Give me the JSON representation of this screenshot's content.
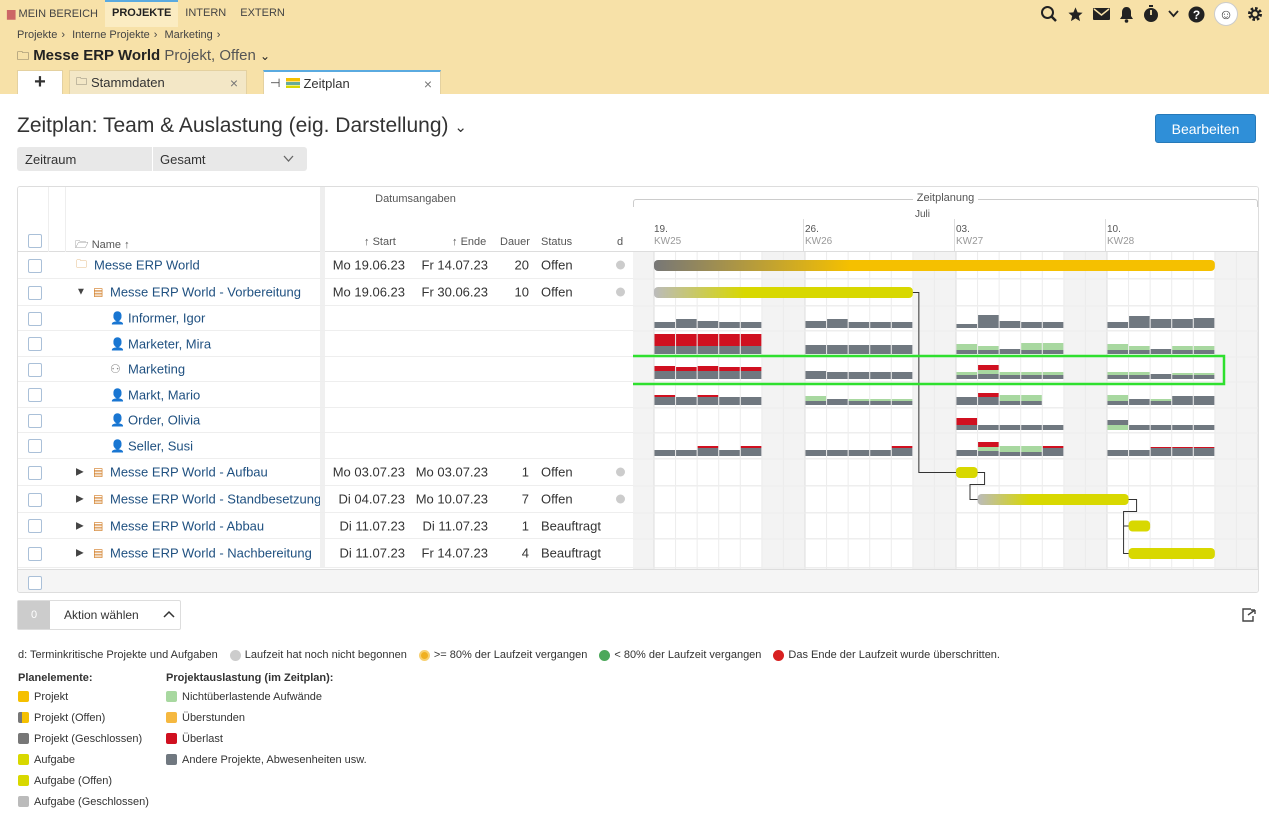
{
  "nav": {
    "items": [
      "MEIN BEREICH",
      "PROJEKTE",
      "INTERN",
      "EXTERN"
    ],
    "active": 1
  },
  "breadcrumb": [
    "Projekte",
    "Interne Projekte",
    "Marketing"
  ],
  "project": {
    "name": "Messe ERP World",
    "meta": "Projekt, Offen"
  },
  "tabs": {
    "stammdaten": "Stammdaten",
    "zeitplan": "Zeitplan"
  },
  "view_title": "Zeitplan: Team & Auslastung (eig. Darstellung)",
  "edit_button": "Bearbeiten",
  "filter": {
    "label": "Zeitraum",
    "value": "Gesamt"
  },
  "grid": {
    "group_dates": "Datumsangaben",
    "group_plan": "Zeitplanung",
    "cols": {
      "name": "Name",
      "start": "Start",
      "end": "Ende",
      "duration": "Dauer",
      "status": "Status",
      "d": "d"
    },
    "month": "Juli",
    "weeks": [
      {
        "day": "19.",
        "kw": "KW25"
      },
      {
        "day": "26.",
        "kw": "KW26"
      },
      {
        "day": "03.",
        "kw": "KW27"
      },
      {
        "day": "10.",
        "kw": "KW28"
      }
    ],
    "rows": [
      {
        "type": "project",
        "name": "Messe ERP World",
        "start": "Mo 19.06.23",
        "end": "Fr 14.07.23",
        "dur": "20",
        "status": "Offen",
        "dot": true
      },
      {
        "type": "task",
        "expanded": true,
        "name": "Messe ERP World - Vorbereitung",
        "start": "Mo 19.06.23",
        "end": "Fr 30.06.23",
        "dur": "10",
        "status": "Offen",
        "dot": true
      },
      {
        "type": "person",
        "name": "Informer, Igor"
      },
      {
        "type": "person",
        "name": "Marketer, Mira"
      },
      {
        "type": "group",
        "name": "Marketing"
      },
      {
        "type": "person",
        "name": "Markt, Mario"
      },
      {
        "type": "person",
        "name": "Order, Olivia"
      },
      {
        "type": "person",
        "name": "Seller, Susi"
      },
      {
        "type": "task",
        "name": "Messe ERP World - Aufbau",
        "start": "Mo 03.07.23",
        "end": "Mo 03.07.23",
        "dur": "1",
        "status": "Offen",
        "dot": true
      },
      {
        "type": "task",
        "name": "Messe ERP World - Standbesetzung",
        "start": "Di 04.07.23",
        "end": "Mo 10.07.23",
        "dur": "7",
        "status": "Offen",
        "dot": true
      },
      {
        "type": "task",
        "name": "Messe ERP World - Abbau",
        "start": "Di 11.07.23",
        "end": "Di 11.07.23",
        "dur": "1",
        "status": "Beauftragt",
        "dot": false
      },
      {
        "type": "task",
        "name": "Messe ERP World - Nachbereitung",
        "start": "Di 11.07.23",
        "end": "Fr 14.07.23",
        "dur": "4",
        "status": "Beauftragt",
        "dot": false
      }
    ]
  },
  "action": {
    "count": "0",
    "label": "Aktion wählen"
  },
  "legend": {
    "line": [
      "d: Terminkritische Projekte und Aufgaben",
      "Laufzeit hat noch nicht begonnen",
      ">= 80% der Laufzeit vergangen",
      "< 80% der Laufzeit vergangen",
      "Das Ende der Laufzeit wurde überschritten."
    ],
    "plan_title": "Planelemente:",
    "plan": [
      {
        "label": "Projekt",
        "color": "#f5c000"
      },
      {
        "label": "Projekt (Offen)",
        "color": "#f5c000"
      },
      {
        "label": "Projekt (Geschlossen)",
        "color": "#777777"
      },
      {
        "label": "Aufgabe",
        "color": "#d8d800"
      },
      {
        "label": "Aufgabe (Offen)",
        "color": "#d8d800"
      },
      {
        "label": "Aufgabe (Geschlossen)",
        "color": "#bbbbbb"
      }
    ],
    "load_title": "Projektauslastung (im Zeitplan):",
    "load": [
      {
        "label": "Nichtüberlastende Aufwände",
        "color": "#a8d8a0"
      },
      {
        "label": "Überstunden",
        "color": "#f5b840"
      },
      {
        "label": "Überlast",
        "color": "#d01020"
      },
      {
        "label": "Andere Projekte, Abwesenheiten usw.",
        "color": "#707880"
      }
    ]
  }
}
